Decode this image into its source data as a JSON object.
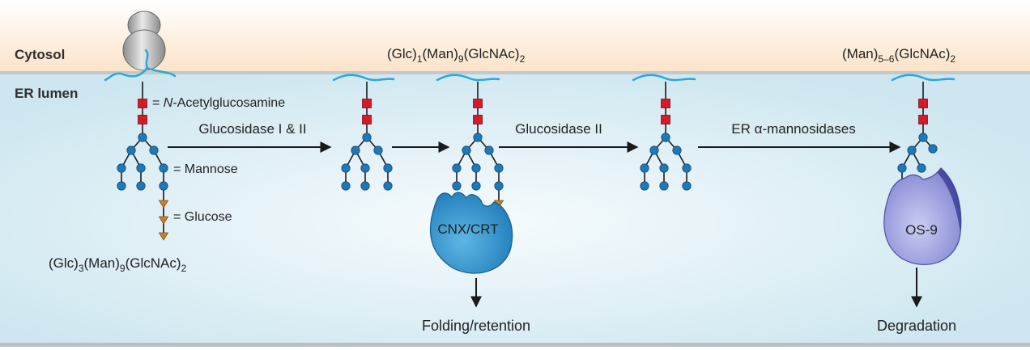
{
  "regions": {
    "cytosol": "Cytosol",
    "er_lumen": "ER lumen"
  },
  "legend": {
    "nag_prefix": "= ",
    "nag_italic": "N",
    "nag_rest": "-Acetylglucosamine",
    "mannose": "= Mannose",
    "glucose": "= Glucose"
  },
  "formulas": {
    "start": {
      "a": "(Glc)",
      "a_sub": "3",
      "b": "(Man)",
      "b_sub": "9",
      "c": "(GlcNAc)",
      "c_sub": "2"
    },
    "mid": {
      "a": "(Glc)",
      "a_sub": "1",
      "b": "(Man)",
      "b_sub": "9",
      "c": "(GlcNAc)",
      "c_sub": "2"
    },
    "end": {
      "a": "(Man)",
      "a_sub": "5–6",
      "b": "(GlcNAc)",
      "b_sub": "2"
    }
  },
  "enzymes": {
    "step1": "Glucosidase I & II",
    "step2": "Glucosidase II",
    "step3_prefix": "ER ",
    "step3_greek": "α",
    "step3_rest": "-mannosidases"
  },
  "proteins": {
    "cnx": "CNX/CRT",
    "os9": "OS-9"
  },
  "outcomes": {
    "folding": "Folding/retention",
    "degradation": "Degradation"
  },
  "colors": {
    "cytosol": "#fbe6cf",
    "lumen": "#d6ebf2",
    "glcnac": "#d7192a",
    "mannose": "#1f78b8",
    "glucose": "#c9822a",
    "membrane_chain": "#2aa8dc",
    "cnx": "#2f8fc6",
    "os9": "#8f8ed8"
  }
}
